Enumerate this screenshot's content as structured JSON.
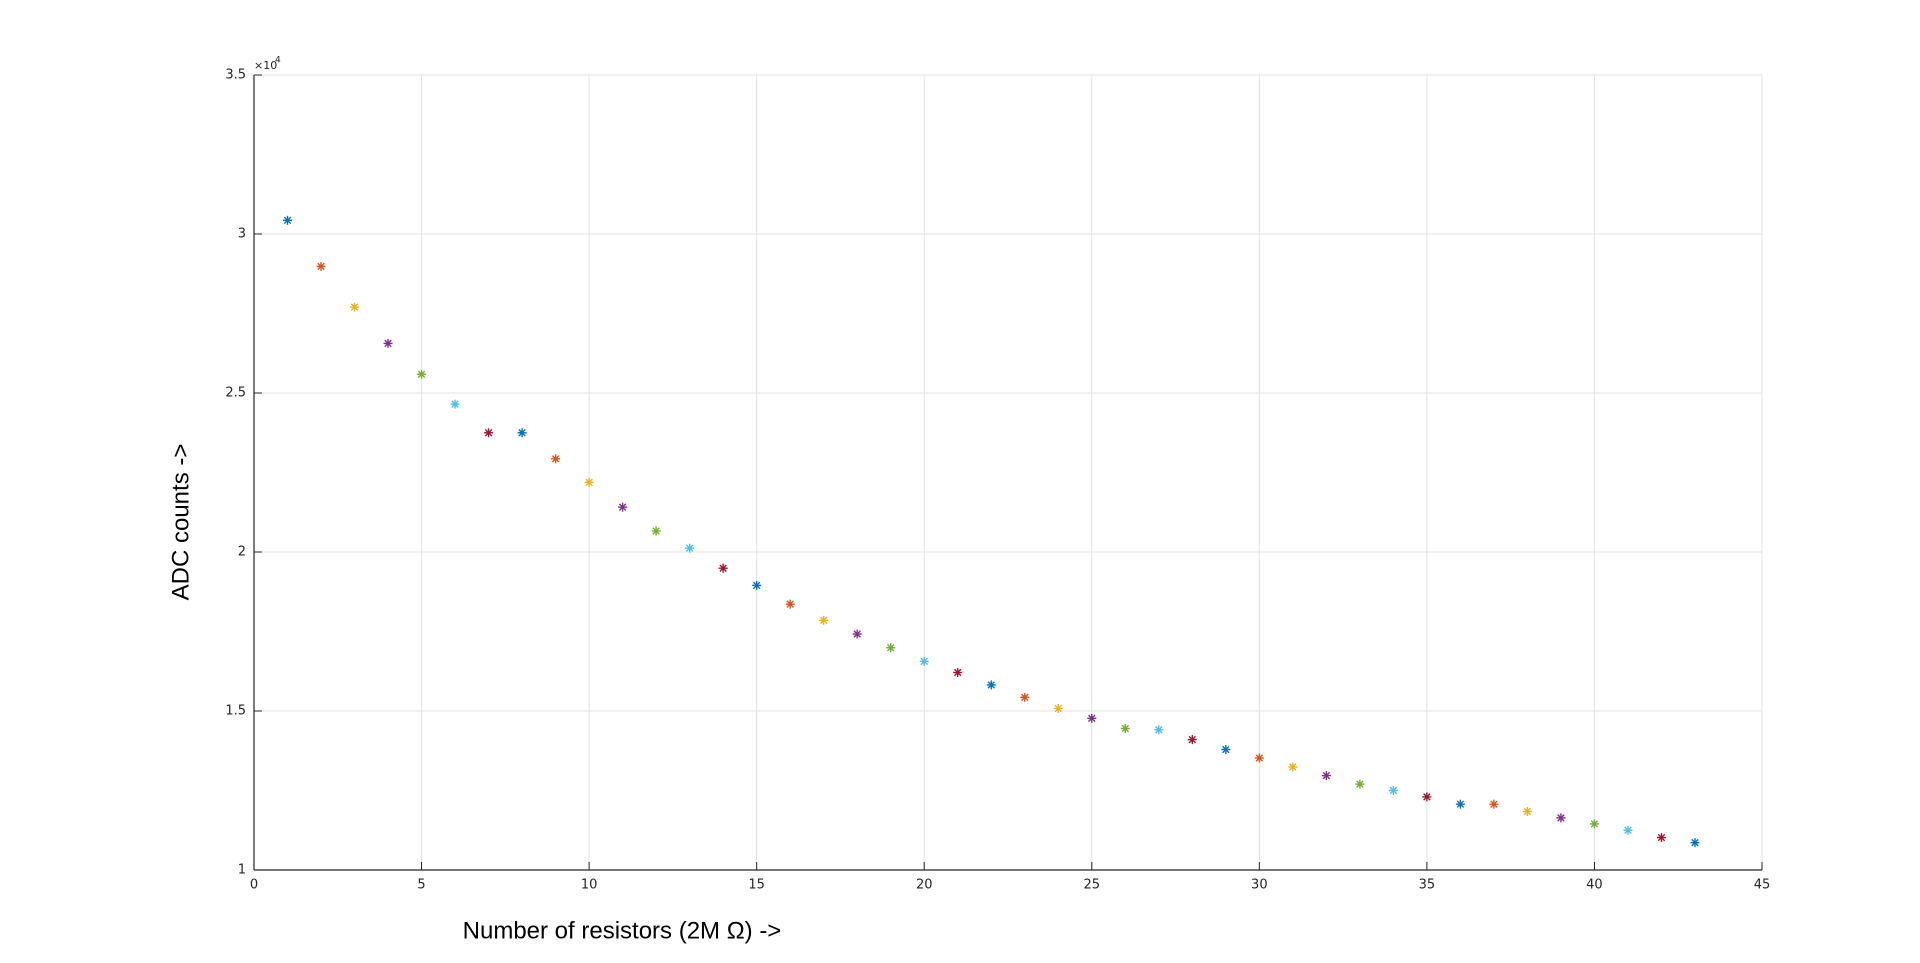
{
  "chart_data": {
    "type": "scatter",
    "x_label": "Number of resistors (2M Ω) ->",
    "y_label": "ADC counts ->",
    "y_multiplier": "×10",
    "y_multiplier_exponent": "4",
    "x": [
      1,
      2,
      3,
      4,
      5,
      6,
      7,
      8,
      9,
      10,
      11,
      12,
      13,
      14,
      15,
      16,
      17,
      18,
      19,
      20,
      21,
      22,
      23,
      24,
      25,
      26,
      27,
      28,
      29,
      30,
      31,
      32,
      33,
      34,
      35,
      36,
      37,
      38,
      39,
      40,
      41,
      42,
      43
    ],
    "values": [
      3.043,
      2.898,
      2.77,
      2.656,
      2.559,
      2.465,
      2.375,
      2.375,
      2.293,
      2.219,
      2.141,
      2.066,
      2.012,
      1.949,
      1.895,
      1.836,
      1.785,
      1.742,
      1.699,
      1.656,
      1.621,
      1.582,
      1.543,
      1.508,
      1.477,
      1.445,
      1.441,
      1.41,
      1.379,
      1.352,
      1.324,
      1.297,
      1.27,
      1.25,
      1.23,
      1.207,
      1.207,
      1.184,
      1.164,
      1.145,
      1.125,
      1.102,
      1.086
    ],
    "colors": [
      "#0072BD",
      "#D95319",
      "#EDB120",
      "#7E2F8E",
      "#77AC30",
      "#4DBEEE",
      "#A2142F"
    ],
    "xlim": [
      0,
      45
    ],
    "xticks": [
      0,
      5,
      10,
      15,
      20,
      25,
      30,
      35,
      40,
      45
    ],
    "ylim": [
      1,
      3.5
    ],
    "yticks": [
      1,
      1.5,
      2,
      2.5,
      3,
      3.5
    ],
    "grid": true
  }
}
